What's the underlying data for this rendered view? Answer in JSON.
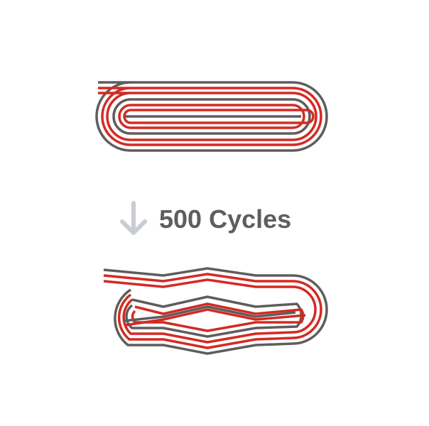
{
  "caption": {
    "text": "500 Cycles",
    "arrow_icon": "arrow-down-icon"
  },
  "colors": {
    "gray_trace": "#5d5d5d",
    "red_trace": "#d32a22",
    "arrow": "#c9cdd1",
    "caption_text": "#5e5e5e",
    "background": "#ffffff"
  },
  "diagrams": [
    {
      "name": "before",
      "state": "intact",
      "loops": 3
    },
    {
      "name": "after",
      "state": "deformed",
      "loops": 3
    }
  ]
}
